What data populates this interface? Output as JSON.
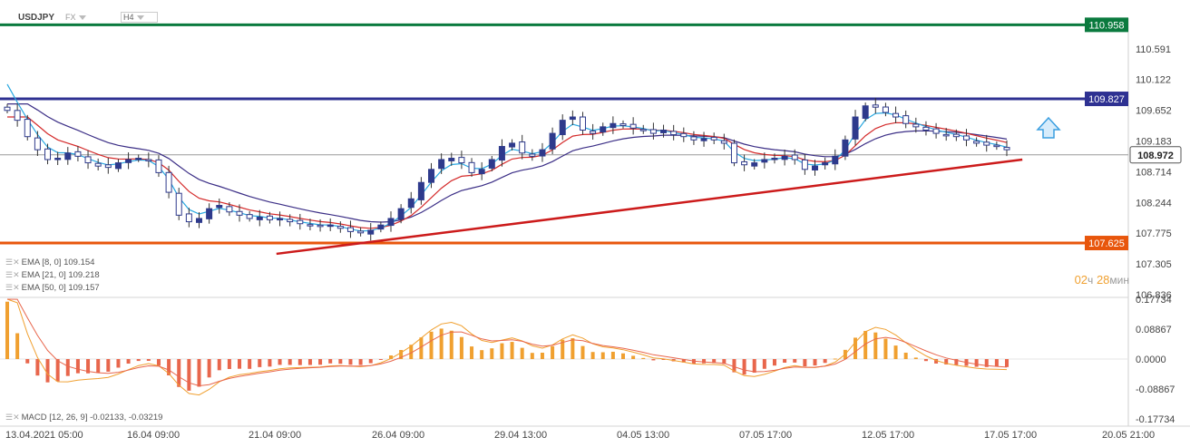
{
  "header": {
    "symbol": "USDJPY",
    "market": "FX",
    "timeframe": "H4"
  },
  "levels": [
    {
      "name": "resistance-top",
      "value": 110.958,
      "color": "#0a7a3e"
    },
    {
      "name": "resistance",
      "value": 109.827,
      "color": "#2e3192"
    },
    {
      "name": "support",
      "value": 107.625,
      "color": "#e8560c"
    }
  ],
  "current_price": {
    "value": 108.972,
    "label": "108.972"
  },
  "price_axis": [
    "110.591",
    "110.122",
    "109.652",
    "109.183",
    "108.714",
    "108.244",
    "107.775",
    "107.305",
    "106.836"
  ],
  "macd_axis": [
    "0.17734",
    "0.08867",
    "0.0000",
    "-0.08867",
    "-0.17734"
  ],
  "time_axis": [
    "13.04.2021  05:00",
    "16.04  09:00",
    "21.04  09:00",
    "26.04  09:00",
    "29.04  13:00",
    "04.05  13:00",
    "07.05  17:00",
    "12.05  17:00",
    "17.05  17:00",
    "20.05  21:00"
  ],
  "legend": {
    "ema8": "EMA [8, 0] 109.154",
    "ema21": "EMA [21, 0] 109.218",
    "ema50": "EMA [50, 0] 109.157",
    "macd": "MACD [12, 26, 9] -0.02133, -0.03219"
  },
  "timer": {
    "hours": "02",
    "h": "ч",
    "minutes": "28",
    "m": "мин"
  },
  "colors": {
    "bull": "#2e3a8c",
    "bear": "#2e3a8c",
    "ema8": "#29a8e0",
    "ema21": "#d42a2a",
    "ema50": "#3b2e86",
    "trend": "#cc1b1b",
    "hist_pos": "#f0a030",
    "hist_neg": "#e8664c",
    "macd_line": "#f0a030",
    "signal_line": "#e8664c"
  },
  "chart_data": {
    "type": "candlestick",
    "symbol": "USDJPY",
    "interval": "H4",
    "price_range": [
      106.836,
      111.06
    ],
    "horizontal_levels": [
      110.958,
      109.827,
      107.625
    ],
    "trendline": [
      [
        0.245,
        107.46
      ],
      [
        0.89,
        108.9
      ]
    ],
    "close_path": [
      109.65,
      109.5,
      109.25,
      109.05,
      108.9,
      108.92,
      109.0,
      108.95,
      108.85,
      108.8,
      108.78,
      108.85,
      108.9,
      108.92,
      108.88,
      108.7,
      108.4,
      108.05,
      107.95,
      108.0,
      108.15,
      108.2,
      108.1,
      108.05,
      108.0,
      108.02,
      107.98,
      108.0,
      107.95,
      107.92,
      107.9,
      107.88,
      107.9,
      107.85,
      107.8,
      107.78,
      107.82,
      107.9,
      108.0,
      108.15,
      108.3,
      108.55,
      108.75,
      108.9,
      108.92,
      108.85,
      108.7,
      108.75,
      108.9,
      109.1,
      109.15,
      109.0,
      108.95,
      109.05,
      109.3,
      109.5,
      109.55,
      109.35,
      109.3,
      109.4,
      109.45,
      109.42,
      109.38,
      109.35,
      109.3,
      109.35,
      109.28,
      109.25,
      109.2,
      109.22,
      109.2,
      109.15,
      108.85,
      108.82,
      108.85,
      108.9,
      108.92,
      108.95,
      108.9,
      108.75,
      108.8,
      108.85,
      108.95,
      109.2,
      109.55,
      109.72,
      109.7,
      109.62,
      109.55,
      109.45,
      109.4,
      109.35,
      109.3,
      109.28,
      109.25,
      109.2,
      109.15,
      109.12,
      109.1,
      109.05
    ],
    "macd_hist_range": [
      -0.17734,
      0.17734
    ]
  }
}
